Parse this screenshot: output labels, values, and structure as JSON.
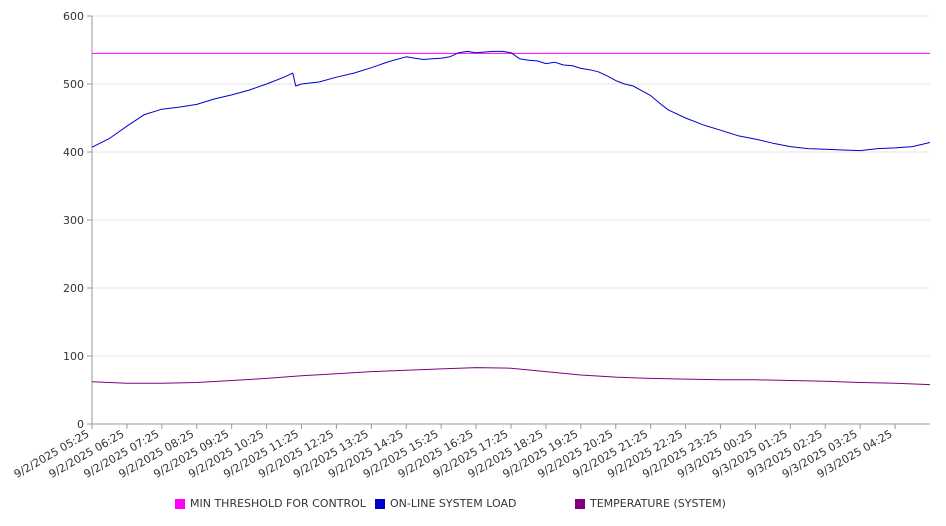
{
  "chart_data": {
    "type": "line",
    "ylim": [
      0,
      600
    ],
    "yticks": [
      0,
      100,
      200,
      300,
      400,
      500,
      600
    ],
    "xlabel": "",
    "ylabel": "",
    "grid": "horizontal",
    "legend_position": "bottom",
    "x_tick_labels": [
      "9/2/2025 05:25",
      "9/2/2025 06:25",
      "9/2/2025 07:25",
      "9/2/2025 08:25",
      "9/2/2025 09:25",
      "9/2/2025 10:25",
      "9/2/2025 11:25",
      "9/2/2025 12:25",
      "9/2/2025 13:25",
      "9/2/2025 14:25",
      "9/2/2025 15:25",
      "9/2/2025 16:25",
      "9/2/2025 17:25",
      "9/2/2025 18:25",
      "9/2/2025 19:25",
      "9/2/2025 20:25",
      "9/2/2025 21:25",
      "9/2/2025 22:25",
      "9/2/2025 23:25",
      "9/3/2025 00:25",
      "9/3/2025 01:25",
      "9/3/2025 02:25",
      "9/3/2025 03:25",
      "9/3/2025 04:25"
    ],
    "x_time_range": [
      "9/2/2025 05:25",
      "9/3/2025 05:25"
    ],
    "series": [
      {
        "name": "MIN THRESHOLD FOR CONTROL",
        "color": "#ff00ff",
        "x": [
          "9/2/2025 05:25",
          "9/3/2025 05:25"
        ],
        "values": [
          545,
          545
        ]
      },
      {
        "name": "ON-LINE SYSTEM LOAD",
        "color": "#0000cc",
        "x": [
          "9/2/2025 05:25",
          "9/2/2025 05:55",
          "9/2/2025 06:25",
          "9/2/2025 06:55",
          "9/2/2025 07:25",
          "9/2/2025 07:55",
          "9/2/2025 08:25",
          "9/2/2025 08:55",
          "9/2/2025 09:25",
          "9/2/2025 09:55",
          "9/2/2025 10:25",
          "9/2/2025 10:55",
          "9/2/2025 11:10",
          "9/2/2025 11:15",
          "9/2/2025 11:25",
          "9/2/2025 11:55",
          "9/2/2025 12:25",
          "9/2/2025 12:55",
          "9/2/2025 13:25",
          "9/2/2025 13:55",
          "9/2/2025 14:25",
          "9/2/2025 14:40",
          "9/2/2025 14:55",
          "9/2/2025 15:10",
          "9/2/2025 15:25",
          "9/2/2025 15:40",
          "9/2/2025 15:55",
          "9/2/2025 16:10",
          "9/2/2025 16:25",
          "9/2/2025 16:40",
          "9/2/2025 16:55",
          "9/2/2025 17:10",
          "9/2/2025 17:25",
          "9/2/2025 17:40",
          "9/2/2025 17:55",
          "9/2/2025 18:10",
          "9/2/2025 18:25",
          "9/2/2025 18:40",
          "9/2/2025 18:55",
          "9/2/2025 19:10",
          "9/2/2025 19:25",
          "9/2/2025 19:40",
          "9/2/2025 19:55",
          "9/2/2025 20:10",
          "9/2/2025 20:25",
          "9/2/2025 20:40",
          "9/2/2025 20:55",
          "9/2/2025 21:10",
          "9/2/2025 21:25",
          "9/2/2025 21:40",
          "9/2/2025 21:55",
          "9/2/2025 22:25",
          "9/2/2025 22:55",
          "9/2/2025 23:25",
          "9/2/2025 23:55",
          "9/3/2025 00:25",
          "9/3/2025 00:55",
          "9/3/2025 01:25",
          "9/3/2025 01:55",
          "9/3/2025 02:25",
          "9/3/2025 02:55",
          "9/3/2025 03:25",
          "9/3/2025 03:55",
          "9/3/2025 04:25",
          "9/3/2025 04:55",
          "9/3/2025 05:25"
        ],
        "values": [
          407,
          420,
          438,
          455,
          463,
          466,
          470,
          478,
          484,
          491,
          500,
          510,
          516,
          497,
          500,
          503,
          510,
          516,
          524,
          533,
          540,
          538,
          536,
          537,
          538,
          540,
          546,
          548,
          546,
          547,
          548,
          548,
          546,
          537,
          535,
          534,
          530,
          532,
          528,
          527,
          523,
          521,
          518,
          512,
          505,
          500,
          497,
          490,
          483,
          472,
          462,
          450,
          440,
          432,
          424,
          419,
          413,
          408,
          405,
          404,
          403,
          402,
          405,
          406,
          408,
          414
        ]
      },
      {
        "name": "TEMPERATURE (SYSTEM)",
        "color": "#800080",
        "x": [
          "9/2/2025 05:25",
          "9/2/2025 06:25",
          "9/2/2025 07:25",
          "9/2/2025 08:25",
          "9/2/2025 09:25",
          "9/2/2025 10:25",
          "9/2/2025 11:25",
          "9/2/2025 12:25",
          "9/2/2025 13:25",
          "9/2/2025 14:25",
          "9/2/2025 15:25",
          "9/2/2025 16:25",
          "9/2/2025 17:25",
          "9/2/2025 18:25",
          "9/2/2025 19:25",
          "9/2/2025 20:25",
          "9/2/2025 21:25",
          "9/2/2025 22:25",
          "9/2/2025 23:25",
          "9/3/2025 00:25",
          "9/3/2025 01:25",
          "9/3/2025 02:25",
          "9/3/2025 03:25",
          "9/3/2025 04:25",
          "9/3/2025 05:25"
        ],
        "values": [
          62,
          60,
          60,
          61,
          64,
          67,
          71,
          74,
          77,
          79,
          81,
          83,
          82,
          77,
          72,
          69,
          67,
          66,
          65,
          65,
          64,
          63,
          61,
          60,
          58
        ]
      }
    ]
  }
}
